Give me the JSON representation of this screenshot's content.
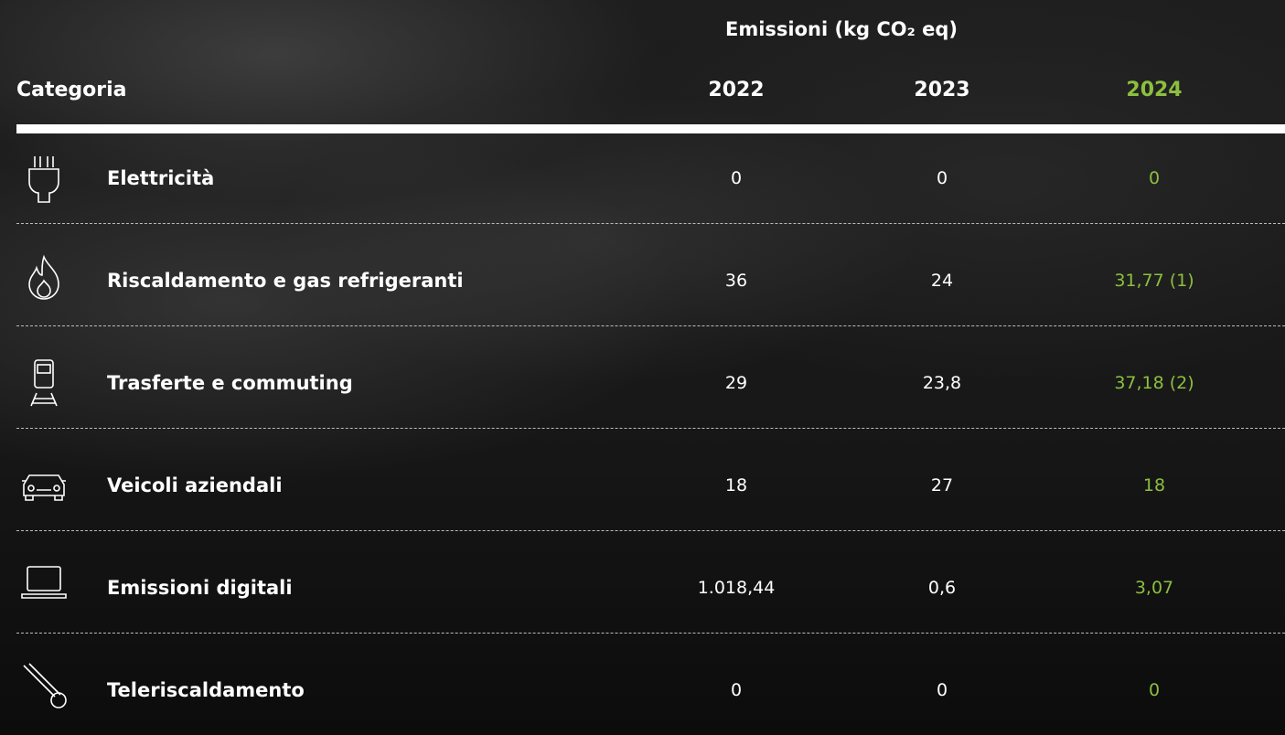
{
  "header": {
    "title": "Emissioni (kg CO₂ eq)"
  },
  "table": {
    "columns": [
      "Categoria",
      "2022",
      "2023",
      "2024"
    ],
    "rows": [
      [
        "Elettricità",
        "0",
        "0",
        "0"
      ],
      [
        "Riscaldamento e gas refrigeranti",
        "36",
        "24",
        "31,77 (1)"
      ],
      [
        "Trasferte e commuting",
        "29",
        "23,8",
        "37,18 (2)"
      ],
      [
        "Veicoli aziendali",
        "18",
        "27",
        "18"
      ],
      [
        "Emissioni digitali",
        "1.018,44",
        "0,6",
        "3,07"
      ],
      [
        "Teleriscaldamento",
        "0",
        "0",
        "0"
      ]
    ]
  }
}
